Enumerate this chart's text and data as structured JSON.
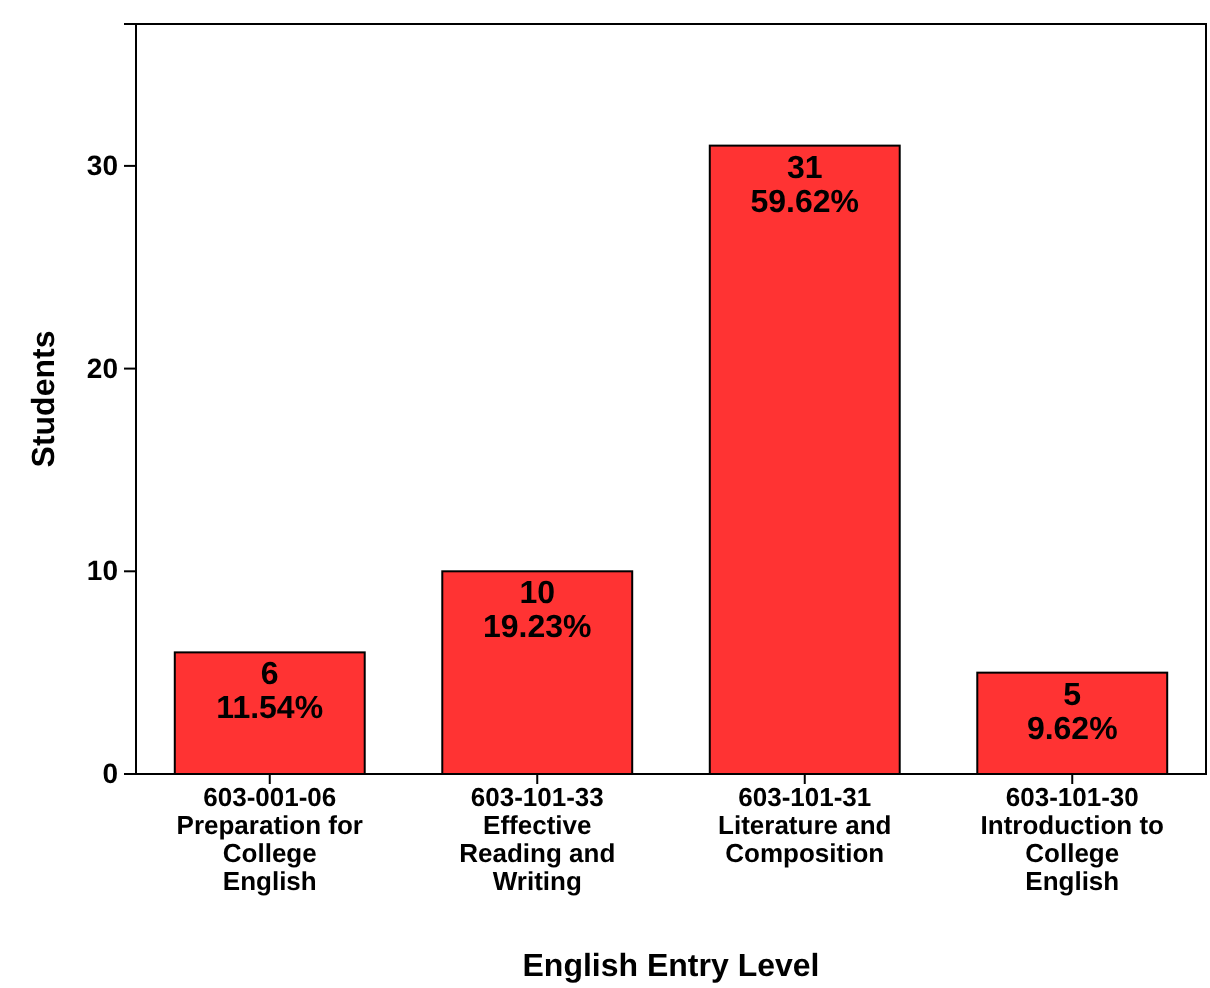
{
  "chart_data": {
    "type": "bar",
    "xlabel": "English Entry Level",
    "ylabel": "Students",
    "categories": [
      "603-001-06\nPreparation for\nCollege\nEnglish",
      "603-101-33\nEffective\nReading and\nWriting",
      "603-101-31\nLiterature and\nComposition",
      "603-101-30\nIntroduction to\nCollege\nEnglish"
    ],
    "values": [
      6,
      10,
      31,
      5
    ],
    "value_labels": [
      "6\n11.54%",
      "10\n19.23%",
      "31\n59.62%",
      "5\n9.62%"
    ],
    "color": "#ff3333",
    "ylim": [
      0,
      37
    ],
    "yticks": [
      0,
      10,
      20,
      30
    ],
    "grid": false
  }
}
